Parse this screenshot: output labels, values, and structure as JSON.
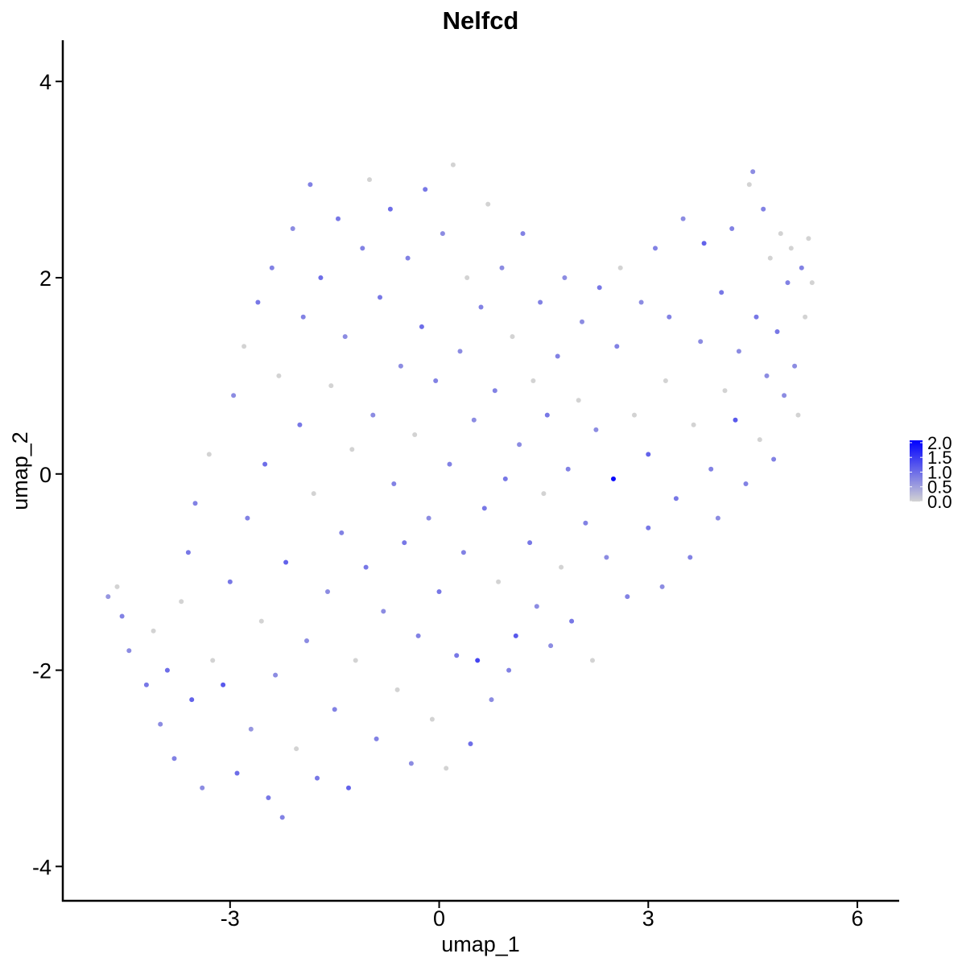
{
  "chart_data": {
    "type": "scatter",
    "title": "Nelfcd",
    "xlabel": "umap_1",
    "ylabel": "umap_2",
    "xlim": [
      -5.4,
      6.6
    ],
    "ylim": [
      -4.35,
      4.42
    ],
    "x_ticks": [
      -3,
      0,
      3,
      6
    ],
    "y_ticks": [
      -4,
      -2,
      0,
      2,
      4
    ],
    "x_tick_labels": [
      "-3",
      "0",
      "3",
      "6"
    ],
    "y_tick_labels": [
      "-4",
      "-2",
      "0",
      "2",
      "4"
    ],
    "grid": false,
    "legend": {
      "placement": "right",
      "type": "colorbar",
      "breaks": [
        2.0,
        1.5,
        1.0,
        0.5,
        0.0
      ],
      "labels": [
        "2.0",
        "1.5",
        "1.0",
        "0.5",
        "0.0"
      ],
      "low_color": "#D3D3D3",
      "high_color": "#0000FF",
      "range": [
        0,
        2.08
      ]
    },
    "point_color_low": "#D3D3D3",
    "point_color_high": "#0000FF",
    "series": [
      {
        "values": [
          {
            "x": -4.75,
            "y": -1.25,
            "e": 0.6
          },
          {
            "x": -4.62,
            "y": -1.15,
            "e": 0.0
          },
          {
            "x": -4.55,
            "y": -1.45,
            "e": 0.8
          },
          {
            "x": -4.45,
            "y": -1.8,
            "e": 0.7
          },
          {
            "x": -4.2,
            "y": -2.15,
            "e": 0.9
          },
          {
            "x": -4.1,
            "y": -1.6,
            "e": 0.0
          },
          {
            "x": -4.0,
            "y": -2.55,
            "e": 0.7
          },
          {
            "x": -3.9,
            "y": -2.0,
            "e": 1.0
          },
          {
            "x": -3.8,
            "y": -2.9,
            "e": 0.8
          },
          {
            "x": -3.7,
            "y": -1.3,
            "e": 0.0
          },
          {
            "x": -3.6,
            "y": -0.8,
            "e": 0.9
          },
          {
            "x": -3.55,
            "y": -2.3,
            "e": 1.1
          },
          {
            "x": -3.5,
            "y": -0.3,
            "e": 0.8
          },
          {
            "x": -3.4,
            "y": -3.2,
            "e": 0.7
          },
          {
            "x": -3.3,
            "y": 0.2,
            "e": 0.0
          },
          {
            "x": -3.25,
            "y": -1.9,
            "e": 0.0
          },
          {
            "x": -3.1,
            "y": -2.15,
            "e": 1.2
          },
          {
            "x": -3.0,
            "y": -1.1,
            "e": 0.9
          },
          {
            "x": -2.95,
            "y": 0.8,
            "e": 0.7
          },
          {
            "x": -2.9,
            "y": -3.05,
            "e": 1.0
          },
          {
            "x": -2.8,
            "y": 1.3,
            "e": 0.0
          },
          {
            "x": -2.75,
            "y": -0.45,
            "e": 0.8
          },
          {
            "x": -2.7,
            "y": -2.6,
            "e": 0.6
          },
          {
            "x": -2.6,
            "y": 1.75,
            "e": 0.9
          },
          {
            "x": -2.55,
            "y": -1.5,
            "e": 0.0
          },
          {
            "x": -2.5,
            "y": 0.1,
            "e": 1.0
          },
          {
            "x": -2.45,
            "y": -3.3,
            "e": 0.9
          },
          {
            "x": -2.4,
            "y": 2.1,
            "e": 0.8
          },
          {
            "x": -2.35,
            "y": -2.05,
            "e": 0.7
          },
          {
            "x": -2.3,
            "y": 1.0,
            "e": 0.0
          },
          {
            "x": -2.25,
            "y": -3.5,
            "e": 0.8
          },
          {
            "x": -2.2,
            "y": -0.9,
            "e": 1.1
          },
          {
            "x": -2.1,
            "y": 2.5,
            "e": 0.7
          },
          {
            "x": -2.05,
            "y": -2.8,
            "e": 0.0
          },
          {
            "x": -2.0,
            "y": 0.5,
            "e": 0.9
          },
          {
            "x": -1.95,
            "y": 1.6,
            "e": 0.8
          },
          {
            "x": -1.9,
            "y": -1.7,
            "e": 0.7
          },
          {
            "x": -1.85,
            "y": 2.95,
            "e": 0.8
          },
          {
            "x": -1.8,
            "y": -0.2,
            "e": 0.0
          },
          {
            "x": -1.75,
            "y": -3.1,
            "e": 0.9
          },
          {
            "x": -1.7,
            "y": 2.0,
            "e": 1.0
          },
          {
            "x": -1.6,
            "y": -1.2,
            "e": 0.7
          },
          {
            "x": -1.55,
            "y": 0.9,
            "e": 0.0
          },
          {
            "x": -1.5,
            "y": -2.4,
            "e": 0.8
          },
          {
            "x": -1.45,
            "y": 2.6,
            "e": 0.9
          },
          {
            "x": -1.4,
            "y": -0.6,
            "e": 0.8
          },
          {
            "x": -1.35,
            "y": 1.4,
            "e": 0.7
          },
          {
            "x": -1.3,
            "y": -3.2,
            "e": 1.1
          },
          {
            "x": -1.25,
            "y": 0.25,
            "e": 0.0
          },
          {
            "x": -1.2,
            "y": -1.9,
            "e": 0.0
          },
          {
            "x": -1.1,
            "y": 2.3,
            "e": 0.8
          },
          {
            "x": -1.05,
            "y": -0.95,
            "e": 0.9
          },
          {
            "x": -1.0,
            "y": 3.0,
            "e": 0.0
          },
          {
            "x": -0.95,
            "y": 0.6,
            "e": 0.7
          },
          {
            "x": -0.9,
            "y": -2.7,
            "e": 0.8
          },
          {
            "x": -0.85,
            "y": 1.8,
            "e": 0.9
          },
          {
            "x": -0.8,
            "y": -1.4,
            "e": 0.7
          },
          {
            "x": -0.7,
            "y": 2.7,
            "e": 1.0
          },
          {
            "x": -0.65,
            "y": -0.1,
            "e": 0.8
          },
          {
            "x": -0.6,
            "y": -2.2,
            "e": 0.0
          },
          {
            "x": -0.55,
            "y": 1.1,
            "e": 0.7
          },
          {
            "x": -0.5,
            "y": -0.7,
            "e": 0.9
          },
          {
            "x": -0.45,
            "y": 2.2,
            "e": 0.8
          },
          {
            "x": -0.4,
            "y": -2.95,
            "e": 0.7
          },
          {
            "x": -0.35,
            "y": 0.4,
            "e": 0.0
          },
          {
            "x": -0.3,
            "y": -1.65,
            "e": 0.8
          },
          {
            "x": -0.25,
            "y": 1.5,
            "e": 1.0
          },
          {
            "x": -0.2,
            "y": 2.9,
            "e": 0.9
          },
          {
            "x": -0.15,
            "y": -0.45,
            "e": 0.7
          },
          {
            "x": -0.1,
            "y": -2.5,
            "e": 0.0
          },
          {
            "x": -0.05,
            "y": 0.95,
            "e": 0.8
          },
          {
            "x": 0.0,
            "y": -1.2,
            "e": 0.9
          },
          {
            "x": 0.05,
            "y": 2.45,
            "e": 0.7
          },
          {
            "x": 0.1,
            "y": -3.0,
            "e": 0.0
          },
          {
            "x": 0.15,
            "y": 0.1,
            "e": 0.8
          },
          {
            "x": 0.2,
            "y": 3.15,
            "e": 0.0
          },
          {
            "x": 0.25,
            "y": -1.85,
            "e": 0.9
          },
          {
            "x": 0.3,
            "y": 1.25,
            "e": 0.7
          },
          {
            "x": 0.35,
            "y": -0.8,
            "e": 0.8
          },
          {
            "x": 0.4,
            "y": 2.0,
            "e": 0.0
          },
          {
            "x": 0.45,
            "y": -2.75,
            "e": 1.0
          },
          {
            "x": 0.5,
            "y": 0.55,
            "e": 0.7
          },
          {
            "x": 0.55,
            "y": -1.9,
            "e": 1.4
          },
          {
            "x": 0.6,
            "y": 1.7,
            "e": 0.8
          },
          {
            "x": 0.65,
            "y": -0.35,
            "e": 0.9
          },
          {
            "x": 0.7,
            "y": 2.75,
            "e": 0.0
          },
          {
            "x": 0.75,
            "y": -2.3,
            "e": 0.7
          },
          {
            "x": 0.8,
            "y": 0.85,
            "e": 0.8
          },
          {
            "x": 0.85,
            "y": -1.1,
            "e": 0.0
          },
          {
            "x": 0.9,
            "y": 2.1,
            "e": 0.7
          },
          {
            "x": 0.95,
            "y": -0.05,
            "e": 0.9
          },
          {
            "x": 1.0,
            "y": -2.0,
            "e": 0.8
          },
          {
            "x": 1.05,
            "y": 1.4,
            "e": 0.0
          },
          {
            "x": 1.1,
            "y": -1.65,
            "e": 1.2
          },
          {
            "x": 1.15,
            "y": 0.3,
            "e": 0.7
          },
          {
            "x": 1.2,
            "y": 2.45,
            "e": 0.8
          },
          {
            "x": 1.3,
            "y": -0.7,
            "e": 0.9
          },
          {
            "x": 1.35,
            "y": 0.95,
            "e": 0.0
          },
          {
            "x": 1.4,
            "y": -1.35,
            "e": 0.7
          },
          {
            "x": 1.45,
            "y": 1.75,
            "e": 0.8
          },
          {
            "x": 1.5,
            "y": -0.2,
            "e": 0.0
          },
          {
            "x": 1.55,
            "y": 0.6,
            "e": 0.9
          },
          {
            "x": 1.6,
            "y": -1.75,
            "e": 0.7
          },
          {
            "x": 1.7,
            "y": 1.2,
            "e": 0.8
          },
          {
            "x": 1.75,
            "y": -0.95,
            "e": 0.0
          },
          {
            "x": 1.8,
            "y": 2.0,
            "e": 0.7
          },
          {
            "x": 1.85,
            "y": 0.05,
            "e": 0.8
          },
          {
            "x": 1.9,
            "y": -1.5,
            "e": 0.9
          },
          {
            "x": 2.0,
            "y": 0.75,
            "e": 0.0
          },
          {
            "x": 2.05,
            "y": 1.55,
            "e": 0.7
          },
          {
            "x": 2.1,
            "y": -0.5,
            "e": 0.8
          },
          {
            "x": 2.2,
            "y": -1.9,
            "e": 0.0
          },
          {
            "x": 2.25,
            "y": 0.45,
            "e": 0.7
          },
          {
            "x": 2.3,
            "y": 1.9,
            "e": 0.9
          },
          {
            "x": 2.4,
            "y": -0.85,
            "e": 0.7
          },
          {
            "x": 2.5,
            "y": -0.05,
            "e": 2.0
          },
          {
            "x": 2.55,
            "y": 1.3,
            "e": 0.8
          },
          {
            "x": 2.6,
            "y": 2.1,
            "e": 0.0
          },
          {
            "x": 2.7,
            "y": -1.25,
            "e": 0.8
          },
          {
            "x": 2.8,
            "y": 0.6,
            "e": 0.0
          },
          {
            "x": 2.9,
            "y": 1.75,
            "e": 0.7
          },
          {
            "x": 3.0,
            "y": -0.55,
            "e": 0.9
          },
          {
            "x": 3.0,
            "y": 0.2,
            "e": 1.1
          },
          {
            "x": 3.1,
            "y": 2.3,
            "e": 0.8
          },
          {
            "x": 3.2,
            "y": -1.15,
            "e": 0.7
          },
          {
            "x": 3.25,
            "y": 0.95,
            "e": 0.0
          },
          {
            "x": 3.3,
            "y": 1.6,
            "e": 0.8
          },
          {
            "x": 3.4,
            "y": -0.25,
            "e": 0.9
          },
          {
            "x": 3.5,
            "y": 2.6,
            "e": 0.7
          },
          {
            "x": 3.6,
            "y": -0.85,
            "e": 0.8
          },
          {
            "x": 3.65,
            "y": 0.5,
            "e": 0.0
          },
          {
            "x": 3.75,
            "y": 1.35,
            "e": 0.7
          },
          {
            "x": 3.8,
            "y": 2.35,
            "e": 1.1
          },
          {
            "x": 3.9,
            "y": 0.05,
            "e": 0.8
          },
          {
            "x": 4.0,
            "y": -0.45,
            "e": 0.7
          },
          {
            "x": 4.05,
            "y": 1.85,
            "e": 0.9
          },
          {
            "x": 4.1,
            "y": 0.85,
            "e": 0.0
          },
          {
            "x": 4.2,
            "y": 2.5,
            "e": 0.8
          },
          {
            "x": 4.25,
            "y": 0.55,
            "e": 1.2
          },
          {
            "x": 4.3,
            "y": 1.25,
            "e": 0.7
          },
          {
            "x": 4.4,
            "y": -0.1,
            "e": 0.8
          },
          {
            "x": 4.45,
            "y": 2.95,
            "e": 0.0
          },
          {
            "x": 4.5,
            "y": 3.08,
            "e": 0.7
          },
          {
            "x": 4.55,
            "y": 1.6,
            "e": 0.9
          },
          {
            "x": 4.6,
            "y": 0.35,
            "e": 0.0
          },
          {
            "x": 4.65,
            "y": 2.7,
            "e": 0.8
          },
          {
            "x": 4.7,
            "y": 1.0,
            "e": 0.7
          },
          {
            "x": 4.75,
            "y": 2.2,
            "e": 0.0
          },
          {
            "x": 4.8,
            "y": 0.15,
            "e": 0.8
          },
          {
            "x": 4.85,
            "y": 1.45,
            "e": 0.9
          },
          {
            "x": 4.9,
            "y": 2.45,
            "e": 0.0
          },
          {
            "x": 4.95,
            "y": 0.8,
            "e": 0.7
          },
          {
            "x": 5.0,
            "y": 1.95,
            "e": 0.8
          },
          {
            "x": 5.05,
            "y": 2.3,
            "e": 0.0
          },
          {
            "x": 5.1,
            "y": 1.1,
            "e": 0.7
          },
          {
            "x": 5.15,
            "y": 0.6,
            "e": 0.0
          },
          {
            "x": 5.2,
            "y": 2.1,
            "e": 0.8
          },
          {
            "x": 5.25,
            "y": 1.6,
            "e": 0.0
          },
          {
            "x": 5.3,
            "y": 2.4,
            "e": 0.0
          },
          {
            "x": 5.35,
            "y": 1.95,
            "e": 0.0
          }
        ]
      }
    ]
  }
}
